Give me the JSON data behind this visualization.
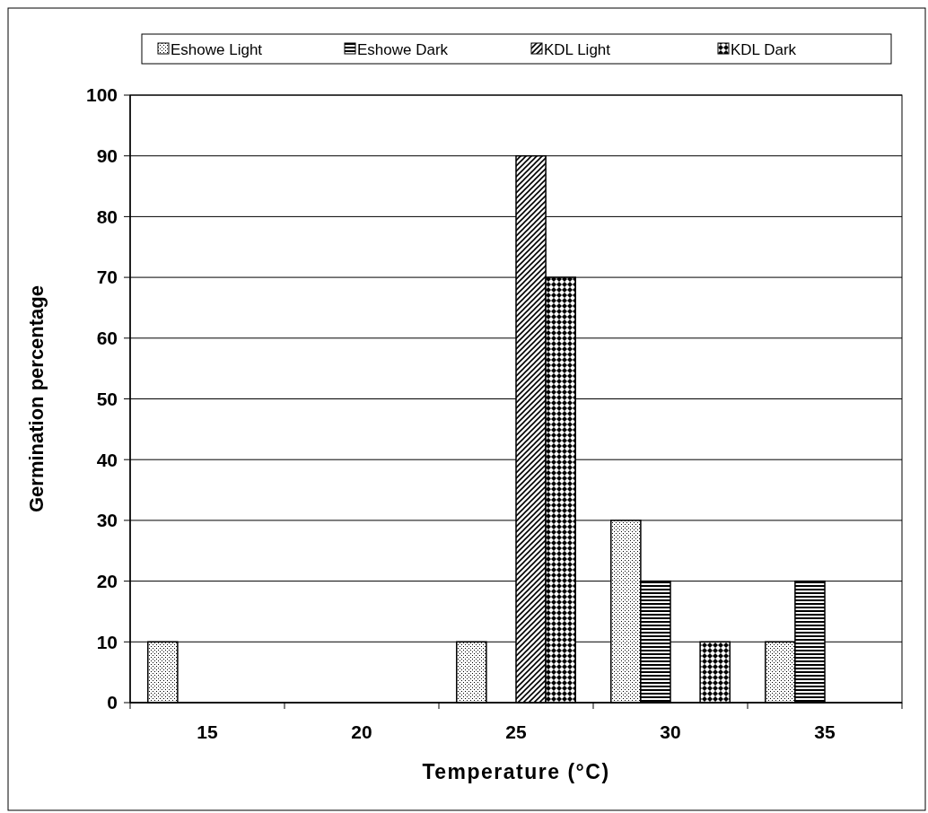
{
  "chart_data": {
    "type": "bar",
    "xlabel": "Temperature (°C)",
    "ylabel": "Germination percentage",
    "categories": [
      "15",
      "20",
      "25",
      "30",
      "35"
    ],
    "series": [
      {
        "name": "Eshowe Light",
        "color": "#000000",
        "values": [
          10,
          0,
          10,
          30,
          10
        ]
      },
      {
        "name": "Eshowe Dark",
        "color": "#000000",
        "values": [
          0,
          0,
          0,
          20,
          20
        ]
      },
      {
        "name": "KDL Light",
        "color": "#000000",
        "values": [
          0,
          0,
          90,
          0,
          0
        ]
      },
      {
        "name": "KDL Dark",
        "color": "#000000",
        "values": [
          0,
          0,
          70,
          10,
          0
        ]
      }
    ],
    "ylim": [
      0,
      100
    ],
    "yticks": [
      0,
      10,
      20,
      30,
      40,
      50,
      60,
      70,
      80,
      90,
      100
    ],
    "grid": "y",
    "legend": "top"
  }
}
